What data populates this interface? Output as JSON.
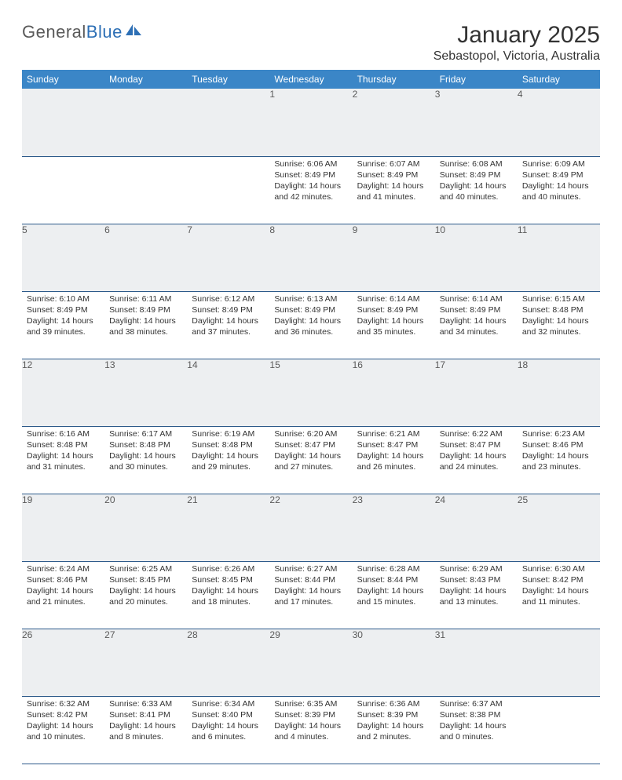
{
  "logo": {
    "text1": "General",
    "text2": "Blue"
  },
  "title": "January 2025",
  "location": "Sebastopol, Victoria, Australia",
  "colors": {
    "header_bg": "#3b86c7",
    "header_text": "#ffffff",
    "daynum_bg": "#edeff1",
    "daynum_text": "#5a5a5a",
    "row_border": "#2d5a8a",
    "logo_gray": "#5a5a5a",
    "logo_blue": "#2d6fb5"
  },
  "font": {
    "title_size": 30,
    "location_size": 16,
    "header_size": 12,
    "cell_size": 10.5
  },
  "weekdays": [
    "Sunday",
    "Monday",
    "Tuesday",
    "Wednesday",
    "Thursday",
    "Friday",
    "Saturday"
  ],
  "weeks": [
    [
      null,
      null,
      null,
      {
        "n": "1",
        "sunrise": "6:06 AM",
        "sunset": "8:49 PM",
        "dh": "14",
        "dm": "42"
      },
      {
        "n": "2",
        "sunrise": "6:07 AM",
        "sunset": "8:49 PM",
        "dh": "14",
        "dm": "41"
      },
      {
        "n": "3",
        "sunrise": "6:08 AM",
        "sunset": "8:49 PM",
        "dh": "14",
        "dm": "40"
      },
      {
        "n": "4",
        "sunrise": "6:09 AM",
        "sunset": "8:49 PM",
        "dh": "14",
        "dm": "40"
      }
    ],
    [
      {
        "n": "5",
        "sunrise": "6:10 AM",
        "sunset": "8:49 PM",
        "dh": "14",
        "dm": "39"
      },
      {
        "n": "6",
        "sunrise": "6:11 AM",
        "sunset": "8:49 PM",
        "dh": "14",
        "dm": "38"
      },
      {
        "n": "7",
        "sunrise": "6:12 AM",
        "sunset": "8:49 PM",
        "dh": "14",
        "dm": "37"
      },
      {
        "n": "8",
        "sunrise": "6:13 AM",
        "sunset": "8:49 PM",
        "dh": "14",
        "dm": "36"
      },
      {
        "n": "9",
        "sunrise": "6:14 AM",
        "sunset": "8:49 PM",
        "dh": "14",
        "dm": "35"
      },
      {
        "n": "10",
        "sunrise": "6:14 AM",
        "sunset": "8:49 PM",
        "dh": "14",
        "dm": "34"
      },
      {
        "n": "11",
        "sunrise": "6:15 AM",
        "sunset": "8:48 PM",
        "dh": "14",
        "dm": "32"
      }
    ],
    [
      {
        "n": "12",
        "sunrise": "6:16 AM",
        "sunset": "8:48 PM",
        "dh": "14",
        "dm": "31"
      },
      {
        "n": "13",
        "sunrise": "6:17 AM",
        "sunset": "8:48 PM",
        "dh": "14",
        "dm": "30"
      },
      {
        "n": "14",
        "sunrise": "6:19 AM",
        "sunset": "8:48 PM",
        "dh": "14",
        "dm": "29"
      },
      {
        "n": "15",
        "sunrise": "6:20 AM",
        "sunset": "8:47 PM",
        "dh": "14",
        "dm": "27"
      },
      {
        "n": "16",
        "sunrise": "6:21 AM",
        "sunset": "8:47 PM",
        "dh": "14",
        "dm": "26"
      },
      {
        "n": "17",
        "sunrise": "6:22 AM",
        "sunset": "8:47 PM",
        "dh": "14",
        "dm": "24"
      },
      {
        "n": "18",
        "sunrise": "6:23 AM",
        "sunset": "8:46 PM",
        "dh": "14",
        "dm": "23"
      }
    ],
    [
      {
        "n": "19",
        "sunrise": "6:24 AM",
        "sunset": "8:46 PM",
        "dh": "14",
        "dm": "21"
      },
      {
        "n": "20",
        "sunrise": "6:25 AM",
        "sunset": "8:45 PM",
        "dh": "14",
        "dm": "20"
      },
      {
        "n": "21",
        "sunrise": "6:26 AM",
        "sunset": "8:45 PM",
        "dh": "14",
        "dm": "18"
      },
      {
        "n": "22",
        "sunrise": "6:27 AM",
        "sunset": "8:44 PM",
        "dh": "14",
        "dm": "17"
      },
      {
        "n": "23",
        "sunrise": "6:28 AM",
        "sunset": "8:44 PM",
        "dh": "14",
        "dm": "15"
      },
      {
        "n": "24",
        "sunrise": "6:29 AM",
        "sunset": "8:43 PM",
        "dh": "14",
        "dm": "13"
      },
      {
        "n": "25",
        "sunrise": "6:30 AM",
        "sunset": "8:42 PM",
        "dh": "14",
        "dm": "11"
      }
    ],
    [
      {
        "n": "26",
        "sunrise": "6:32 AM",
        "sunset": "8:42 PM",
        "dh": "14",
        "dm": "10"
      },
      {
        "n": "27",
        "sunrise": "6:33 AM",
        "sunset": "8:41 PM",
        "dh": "14",
        "dm": "8"
      },
      {
        "n": "28",
        "sunrise": "6:34 AM",
        "sunset": "8:40 PM",
        "dh": "14",
        "dm": "6"
      },
      {
        "n": "29",
        "sunrise": "6:35 AM",
        "sunset": "8:39 PM",
        "dh": "14",
        "dm": "4"
      },
      {
        "n": "30",
        "sunrise": "6:36 AM",
        "sunset": "8:39 PM",
        "dh": "14",
        "dm": "2"
      },
      {
        "n": "31",
        "sunrise": "6:37 AM",
        "sunset": "8:38 PM",
        "dh": "14",
        "dm": "0"
      },
      null
    ]
  ],
  "labels": {
    "sunrise": "Sunrise:",
    "sunset": "Sunset:",
    "daylight_prefix": "Daylight:",
    "hours_word": "hours",
    "and_word": "and",
    "minutes_word": "minutes."
  }
}
